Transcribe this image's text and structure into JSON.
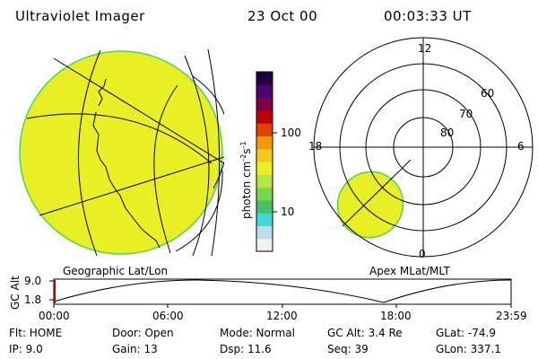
{
  "header": {
    "instrument": "Ultraviolet Imager",
    "date": "23 Oct 00",
    "time": "00:03:33 UT"
  },
  "left_panel": {
    "caption": "Geographic Lat/Lon",
    "fill_color": "#e8f024",
    "edge_color": "#4bd84b"
  },
  "right_panel": {
    "caption": "Apex MLat/MLT",
    "mlt_labels": [
      "12",
      "18",
      "6",
      "0"
    ],
    "mlat_labels": [
      "60",
      "70",
      "80"
    ]
  },
  "colorbar": {
    "unit": "photon cm",
    "unit_sup1": "-2",
    "unit_mid": "s",
    "unit_sup2": "-1",
    "ticks": [
      "100",
      "10"
    ],
    "colors": [
      "#f0f0f0",
      "#b8e0ec",
      "#40d8d8",
      "#48c068",
      "#74d848",
      "#b4e840",
      "#e8f024",
      "#f4c818",
      "#f49800",
      "#e04000",
      "#c00000",
      "#800040",
      "#500070",
      "#200040"
    ]
  },
  "altitude_plot": {
    "ylabel": "GC Alt",
    "y_ticks": [
      "9.0",
      "1.8"
    ],
    "x_ticks": [
      "00:00",
      "06:00",
      "12:00",
      "18:00",
      "23:59"
    ],
    "current_marker_color": "#b00000"
  },
  "status": {
    "flt": "Flt: HOME",
    "ip": "IP: 9.0",
    "door": "Door: Open",
    "gain": "Gain: 13",
    "mode": "Mode: Normal",
    "dsp": "Dsp:   11.6",
    "gc_alt": "GC Alt: 3.4 Re",
    "seq": "Seq: 39",
    "glat": "GLat: -74.9",
    "glon": "GLon: 337.1"
  }
}
